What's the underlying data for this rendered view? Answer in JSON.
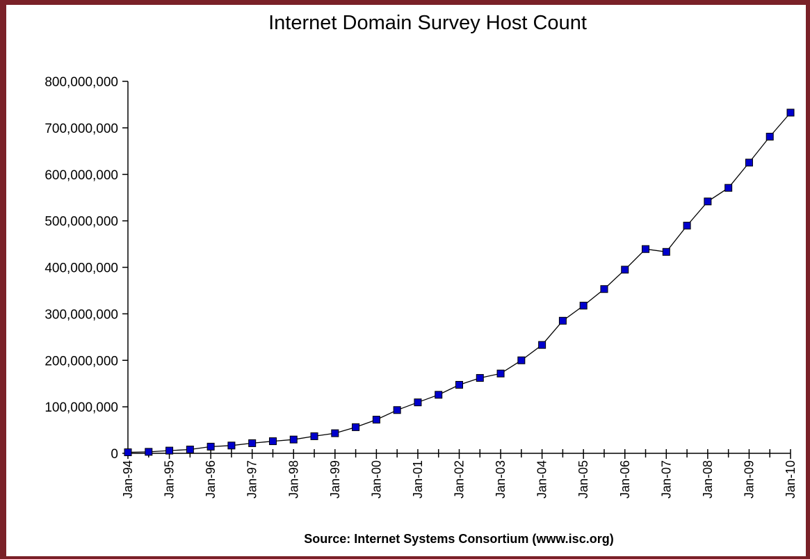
{
  "colors": {
    "frame": "#7a2128",
    "background": "#ffffff",
    "line": "#000000",
    "marker_fill": "#0000cc",
    "marker_stroke": "#000000"
  },
  "chart_data": {
    "type": "line",
    "title": "Internet Domain Survey Host Count",
    "xlabel": "Source: Internet Systems Consortium (www.isc.org)",
    "ylabel": "",
    "ylim": [
      0,
      800000000
    ],
    "y_ticks": [
      0,
      100000000,
      200000000,
      300000000,
      400000000,
      500000000,
      600000000,
      700000000,
      800000000
    ],
    "y_tick_labels": [
      "0",
      "100,000,000",
      "200,000,000",
      "300,000,000",
      "400,000,000",
      "500,000,000",
      "600,000,000",
      "700,000,000",
      "800,000,000"
    ],
    "x_tick_labels": [
      "Jan-94",
      "Jan-95",
      "Jan-96",
      "Jan-97",
      "Jan-98",
      "Jan-99",
      "Jan-00",
      "Jan-01",
      "Jan-02",
      "Jan-03",
      "Jan-04",
      "Jan-05",
      "Jan-06",
      "Jan-07",
      "Jan-08",
      "Jan-09",
      "Jan-10"
    ],
    "x": [
      "Jan-94",
      "Jul-94",
      "Jan-95",
      "Jul-95",
      "Jan-96",
      "Jul-96",
      "Jan-97",
      "Jul-97",
      "Jan-98",
      "Jul-98",
      "Jan-99",
      "Jul-99",
      "Jan-00",
      "Jul-00",
      "Jan-01",
      "Jul-01",
      "Jan-02",
      "Jul-02",
      "Jan-03",
      "Jul-03",
      "Jan-04",
      "Jul-04",
      "Jan-05",
      "Jul-05",
      "Jan-06",
      "Jul-06",
      "Jan-07",
      "Jul-07",
      "Jan-08",
      "Jul-08",
      "Jan-09",
      "Jul-09",
      "Jan-10"
    ],
    "series": [
      {
        "values": [
          2217000,
          3212000,
          5846000,
          8200000,
          14352000,
          16729000,
          21819000,
          26053000,
          29670000,
          36739000,
          43230000,
          56218000,
          72398000,
          93047000,
          109574000,
          125888000,
          147345000,
          162128000,
          171638000,
          200000000,
          233101000,
          285139000,
          317646000,
          353284000,
          394992000,
          439286000,
          433193000,
          489774000,
          541678000,
          570937000,
          625226000,
          681064000,
          732740000
        ]
      }
    ],
    "grid": false,
    "legend": "none"
  }
}
